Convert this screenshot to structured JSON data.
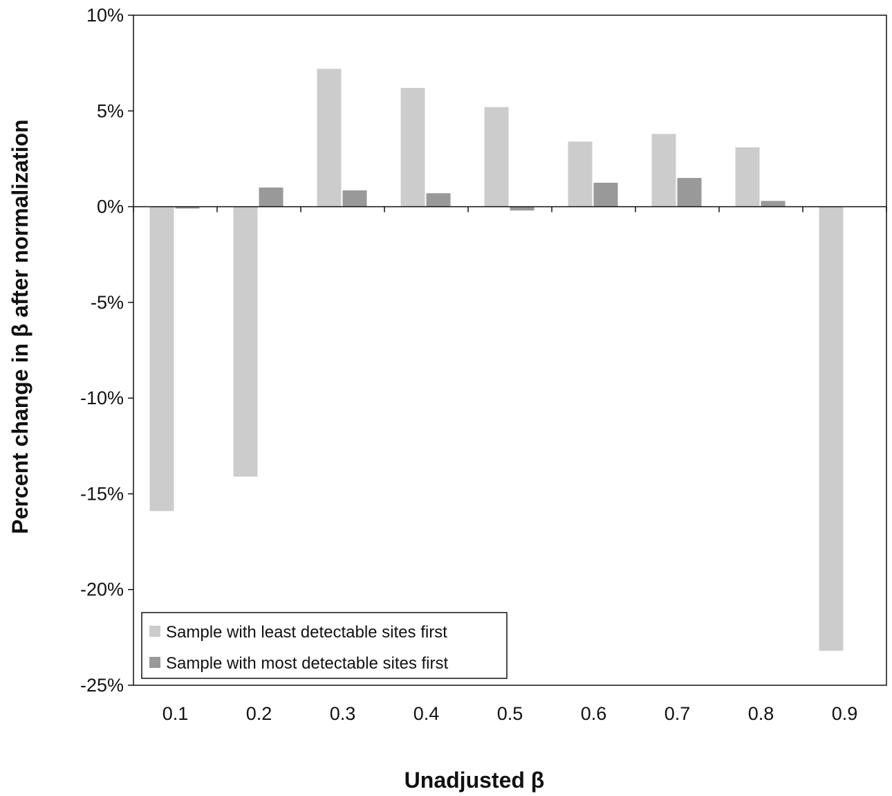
{
  "chart_data": {
    "type": "bar",
    "title": "",
    "xlabel": "Unadjusted β",
    "ylabel": "Percent change in β after  normalization",
    "categories": [
      "0.1",
      "0.2",
      "0.3",
      "0.4",
      "0.5",
      "0.6",
      "0.7",
      "0.8",
      "0.9"
    ],
    "series": [
      {
        "name": "Sample with least detectable sites first",
        "color": "#cccccc",
        "values": [
          -15.9,
          -14.1,
          7.2,
          6.2,
          5.2,
          3.4,
          3.8,
          3.1,
          -23.2
        ]
      },
      {
        "name": "Sample with most detectable sites first",
        "color": "#999999",
        "values": [
          -0.1,
          1.0,
          0.85,
          0.7,
          -0.2,
          1.25,
          1.5,
          0.3,
          0.0
        ]
      }
    ],
    "ylim": [
      -25,
      10
    ],
    "yticks": [
      10,
      5,
      0,
      -5,
      -10,
      -15,
      -20,
      -25
    ],
    "ytick_labels": [
      "10%",
      "5%",
      "0%",
      "-5%",
      "-10%",
      "-15%",
      "-20%",
      "-25%"
    ],
    "grid": false,
    "legend_position": "bottom-left"
  }
}
